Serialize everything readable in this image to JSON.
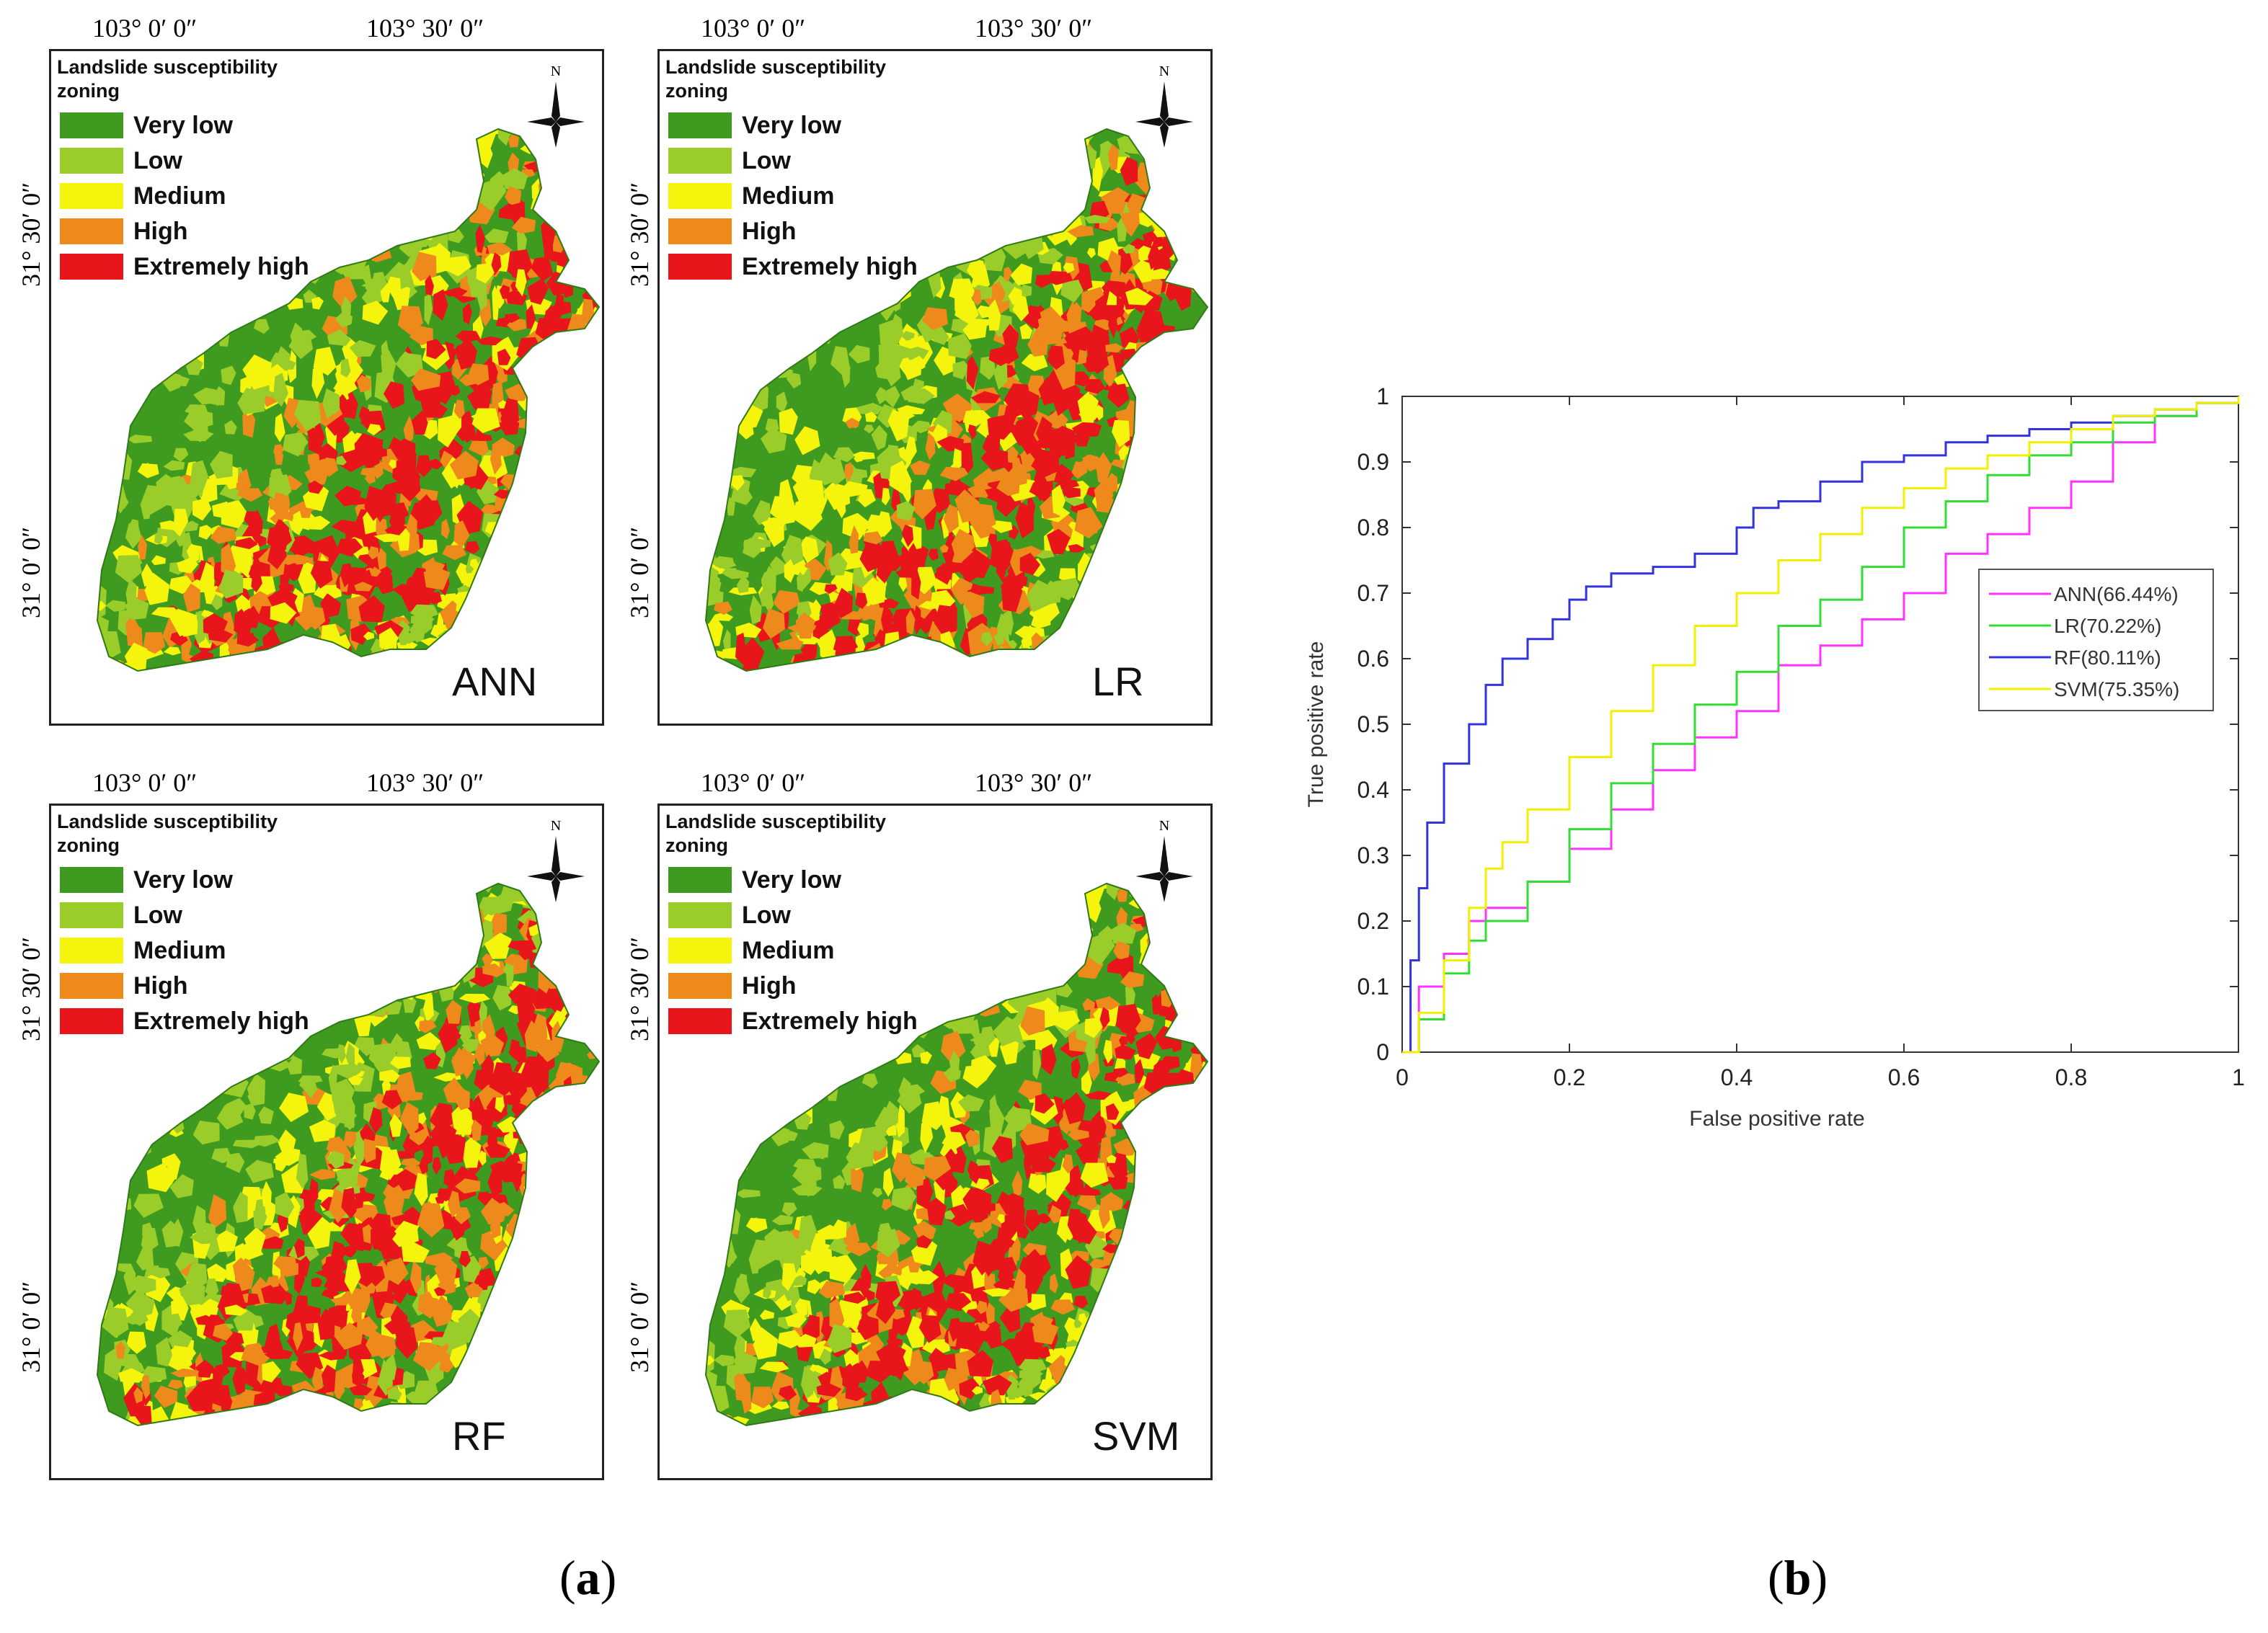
{
  "map_panels": [
    {
      "model": "ANN",
      "lon_labels": [
        "103° 0′ 0″",
        "103° 30′ 0″"
      ],
      "lat_labels": [
        "31° 30′ 0″",
        "31° 0′ 0″"
      ],
      "legend_title": "Landslide susceptibility zoning",
      "north": "N"
    },
    {
      "model": "LR",
      "lon_labels": [
        "103° 0′ 0″",
        "103° 30′ 0″"
      ],
      "lat_labels": [
        "31° 30′ 0″",
        "31° 0′ 0″"
      ],
      "legend_title": "Landslide susceptibility zoning",
      "north": "N"
    },
    {
      "model": "RF",
      "lon_labels": [
        "103° 0′ 0″",
        "103° 30′ 0″"
      ],
      "lat_labels": [
        "31° 30′ 0″",
        "31° 0′ 0″"
      ],
      "legend_title": "Landslide susceptibility zoning",
      "north": "N"
    },
    {
      "model": "SVM",
      "lon_labels": [
        "103° 0′ 0″",
        "103° 30′ 0″"
      ],
      "lat_labels": [
        "31° 30′ 0″",
        "31° 0′ 0″"
      ],
      "legend_title": "Landslide susceptibility zoning",
      "north": "N"
    }
  ],
  "legend_classes": [
    {
      "label": "Very low",
      "color": "#3f9b1f"
    },
    {
      "label": "Low",
      "color": "#9acd2a"
    },
    {
      "label": "Medium",
      "color": "#f4f40c"
    },
    {
      "label": "High",
      "color": "#ee8a1c"
    },
    {
      "label": "Extremely high",
      "color": "#e8161a"
    }
  ],
  "panel_labels": {
    "a": "a",
    "b": "b"
  },
  "chart_data": {
    "type": "line",
    "xlabel": "False positive rate",
    "ylabel": "True positive rate",
    "xlim": [
      0,
      1
    ],
    "ylim": [
      0,
      1
    ],
    "xticks": [
      0,
      0.2,
      0.4,
      0.6,
      0.8,
      1
    ],
    "xtick_labels": [
      "0",
      "0.2",
      "0.4",
      "0.6",
      "0.8",
      "1"
    ],
    "yticks": [
      0,
      0.1,
      0.2,
      0.3,
      0.4,
      0.5,
      0.6,
      0.7,
      0.8,
      0.9,
      1
    ],
    "ytick_labels": [
      "0",
      "0.1",
      "0.2",
      "0.3",
      "0.4",
      "0.5",
      "0.6",
      "0.7",
      "0.8",
      "0.9",
      "1"
    ],
    "legend_position": "right",
    "series": [
      {
        "name": "ANN(66.44%)",
        "color": "#ff33ff",
        "x": [
          0,
          0.02,
          0.05,
          0.08,
          0.1,
          0.15,
          0.2,
          0.25,
          0.3,
          0.35,
          0.4,
          0.45,
          0.5,
          0.55,
          0.6,
          0.65,
          0.7,
          0.75,
          0.8,
          0.85,
          0.9,
          0.95,
          1
        ],
        "y": [
          0,
          0.1,
          0.15,
          0.2,
          0.22,
          0.26,
          0.31,
          0.37,
          0.43,
          0.48,
          0.52,
          0.59,
          0.62,
          0.66,
          0.7,
          0.76,
          0.79,
          0.83,
          0.87,
          0.93,
          0.97,
          0.99,
          1
        ]
      },
      {
        "name": "LR(70.22%)",
        "color": "#33dd33",
        "x": [
          0,
          0.02,
          0.05,
          0.08,
          0.1,
          0.15,
          0.2,
          0.25,
          0.3,
          0.35,
          0.4,
          0.45,
          0.5,
          0.55,
          0.6,
          0.65,
          0.7,
          0.75,
          0.8,
          0.85,
          0.9,
          0.95,
          1
        ],
        "y": [
          0,
          0.05,
          0.12,
          0.17,
          0.2,
          0.26,
          0.34,
          0.41,
          0.47,
          0.53,
          0.58,
          0.65,
          0.69,
          0.74,
          0.8,
          0.84,
          0.88,
          0.91,
          0.93,
          0.96,
          0.97,
          0.99,
          1
        ]
      },
      {
        "name": "RF(80.11%)",
        "color": "#3333dd",
        "x": [
          0,
          0.01,
          0.02,
          0.03,
          0.05,
          0.08,
          0.1,
          0.12,
          0.15,
          0.18,
          0.2,
          0.22,
          0.25,
          0.3,
          0.35,
          0.4,
          0.42,
          0.45,
          0.5,
          0.55,
          0.6,
          0.65,
          0.7,
          0.75,
          0.8,
          0.85,
          0.9,
          0.95,
          1
        ],
        "y": [
          0,
          0.14,
          0.25,
          0.35,
          0.44,
          0.5,
          0.56,
          0.6,
          0.63,
          0.66,
          0.69,
          0.71,
          0.73,
          0.74,
          0.76,
          0.8,
          0.83,
          0.84,
          0.87,
          0.9,
          0.91,
          0.93,
          0.94,
          0.95,
          0.96,
          0.97,
          0.98,
          0.99,
          1
        ]
      },
      {
        "name": "SVM(75.35%)",
        "color": "#f0f000",
        "x": [
          0,
          0.02,
          0.05,
          0.08,
          0.1,
          0.12,
          0.15,
          0.2,
          0.25,
          0.3,
          0.35,
          0.4,
          0.45,
          0.5,
          0.55,
          0.6,
          0.65,
          0.7,
          0.75,
          0.8,
          0.85,
          0.9,
          0.95,
          1
        ],
        "y": [
          0,
          0.06,
          0.14,
          0.22,
          0.28,
          0.32,
          0.37,
          0.45,
          0.52,
          0.59,
          0.65,
          0.7,
          0.75,
          0.79,
          0.83,
          0.86,
          0.89,
          0.91,
          0.93,
          0.95,
          0.97,
          0.98,
          0.99,
          1
        ]
      }
    ]
  }
}
